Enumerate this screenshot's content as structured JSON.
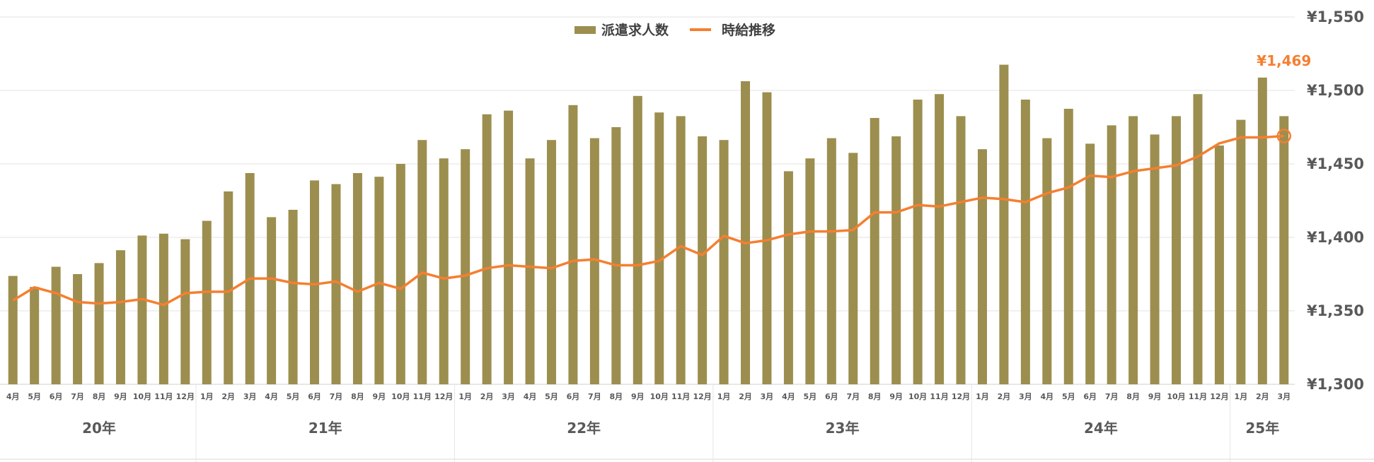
{
  "colors": {
    "bar": "#9c8e4f",
    "line": "#f57f30",
    "grid": "#e3e3e3",
    "axis_text": "#595959",
    "highlight": "#f57f30"
  },
  "legend": {
    "bar_label": "派遣求人数",
    "line_label": "時給推移"
  },
  "chart_data": {
    "type": "bar",
    "legend_position": "top-center",
    "grid": true,
    "y_right": {
      "ticks": [
        "¥1,550",
        "¥1,500",
        "¥1,450",
        "¥1,400",
        "¥1,350",
        "¥1,300"
      ],
      "range": [
        1300,
        1550
      ],
      "step": 50
    },
    "categories": [
      "4月",
      "5月",
      "6月",
      "7月",
      "8月",
      "9月",
      "10月",
      "11月",
      "12月",
      "1月",
      "2月",
      "3月",
      "4月",
      "5月",
      "6月",
      "7月",
      "8月",
      "9月",
      "10月",
      "11月",
      "12月",
      "1月",
      "2月",
      "3月",
      "4月",
      "5月",
      "6月",
      "7月",
      "8月",
      "9月",
      "10月",
      "11月",
      "12月",
      "1月",
      "2月",
      "3月",
      "4月",
      "5月",
      "6月",
      "7月",
      "8月",
      "9月",
      "10月",
      "11月",
      "12月",
      "1月",
      "2月",
      "3月",
      "4月",
      "5月",
      "6月",
      "7月",
      "8月",
      "9月",
      "10月",
      "11月",
      "12月",
      "1月",
      "2月",
      "3月"
    ],
    "year_groups": [
      {
        "label": "20年",
        "count": 9
      },
      {
        "label": "21年",
        "count": 12
      },
      {
        "label": "22年",
        "count": 12
      },
      {
        "label": "23年",
        "count": 12
      },
      {
        "label": "24年",
        "count": 12
      },
      {
        "label": "25年",
        "count": 3
      }
    ],
    "series": [
      {
        "name": "派遣求人数",
        "type": "bar",
        "values": [
          29.5,
          26.5,
          32,
          30,
          33,
          36.5,
          40.5,
          41,
          39.5,
          44.5,
          52.5,
          57.5,
          45.5,
          47.5,
          55.5,
          54.5,
          57.5,
          56.5,
          60,
          66.5,
          61.5,
          64,
          73.5,
          74.5,
          61.5,
          66.5,
          76,
          67,
          70,
          78.5,
          74,
          73,
          67.5,
          66.5,
          82.5,
          79.5,
          58,
          61.5,
          67,
          63,
          72.5,
          67.5,
          77.5,
          79,
          73,
          64,
          87,
          77.5,
          67,
          75,
          65.5,
          70.5,
          73,
          68,
          73,
          79,
          65,
          72,
          83.5,
          73
        ],
        "scale": "relative"
      },
      {
        "name": "時給推移",
        "type": "line",
        "values": [
          1357,
          1366,
          1362,
          1356,
          1355,
          1356,
          1358,
          1354,
          1362,
          1363,
          1363,
          1372,
          1372,
          1369,
          1368,
          1370,
          1363,
          1369,
          1365,
          1376,
          1372,
          1374,
          1379,
          1381,
          1380,
          1379,
          1384,
          1385,
          1381,
          1381,
          1384,
          1394,
          1388,
          1401,
          1396,
          1398,
          1402,
          1404,
          1404,
          1405,
          1417,
          1417,
          1422,
          1421,
          1424,
          1427,
          1426,
          1424,
          1430,
          1434,
          1442,
          1441,
          1445,
          1447,
          1449,
          1455,
          1464,
          1468,
          1468,
          1469
        ]
      }
    ],
    "annotation": {
      "label": "¥1,469",
      "index": 59
    }
  }
}
